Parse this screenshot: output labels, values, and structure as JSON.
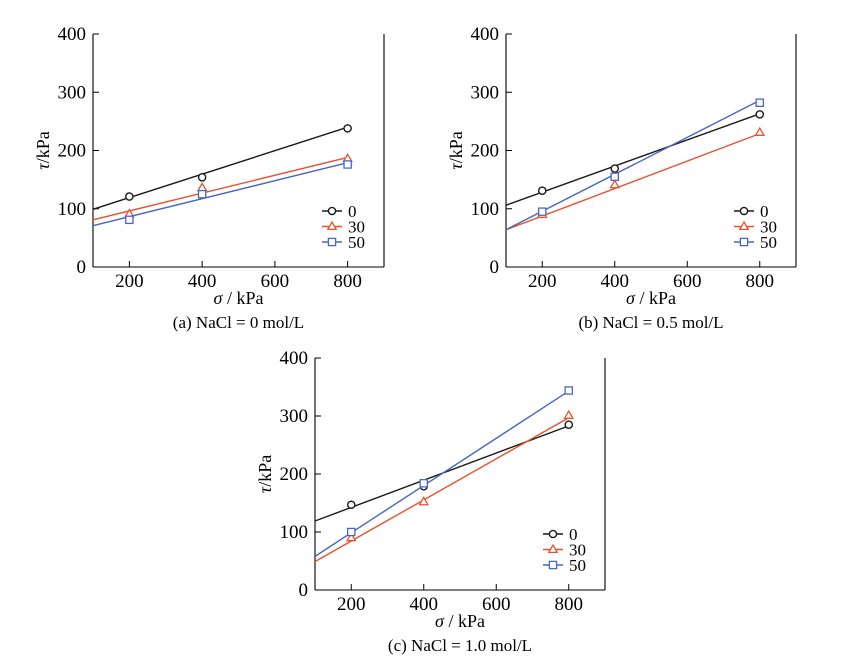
{
  "chart_data": [
    {
      "type": "line",
      "caption": "(a) NaCl = 0 mol/L",
      "xlabel_symbol": "σ",
      "xlabel_unit": " / kPa",
      "ylabel_symbol": "τ",
      "ylabel_unit": "/kPa",
      "xlim": [
        100,
        900
      ],
      "ylim": [
        0,
        400
      ],
      "xticks": [
        200,
        400,
        600,
        800
      ],
      "yticks": [
        0,
        100,
        200,
        300,
        400
      ],
      "legend_position": "lower-right",
      "series": [
        {
          "name": "0",
          "color": "#1a1a1a",
          "marker": "circle",
          "points": [
            [
              200,
              121
            ],
            [
              400,
              154
            ],
            [
              800,
              238
            ]
          ],
          "fit": [
            [
              100,
              99
            ],
            [
              800,
              240
            ]
          ]
        },
        {
          "name": "30",
          "color": "#e8522e",
          "marker": "triangle",
          "points": [
            [
              200,
              91
            ],
            [
              400,
              136
            ],
            [
              800,
              186
            ]
          ],
          "fit": [
            [
              100,
              81
            ],
            [
              800,
              188
            ]
          ]
        },
        {
          "name": "50",
          "color": "#4a66c4",
          "marker": "square",
          "points": [
            [
              200,
              81
            ],
            [
              400,
              125
            ],
            [
              800,
              176
            ]
          ],
          "fit": [
            [
              100,
              71
            ],
            [
              800,
              179
            ]
          ]
        }
      ]
    },
    {
      "type": "line",
      "caption": "(b) NaCl = 0.5 mol/L",
      "xlabel_symbol": "σ",
      "xlabel_unit": " / kPa",
      "ylabel_symbol": "τ",
      "ylabel_unit": "/kPa",
      "xlim": [
        100,
        900
      ],
      "ylim": [
        0,
        400
      ],
      "xticks": [
        200,
        400,
        600,
        800
      ],
      "yticks": [
        0,
        100,
        200,
        300,
        400
      ],
      "legend_position": "lower-right",
      "series": [
        {
          "name": "0",
          "color": "#1a1a1a",
          "marker": "circle",
          "points": [
            [
              200,
              131
            ],
            [
              400,
              169
            ],
            [
              800,
              262
            ]
          ],
          "fit": [
            [
              100,
              106
            ],
            [
              800,
              263
            ]
          ]
        },
        {
          "name": "30",
          "color": "#e8522e",
          "marker": "triangle",
          "points": [
            [
              200,
              90
            ],
            [
              400,
              141
            ],
            [
              800,
              231
            ]
          ],
          "fit": [
            [
              100,
              64
            ],
            [
              800,
              229
            ]
          ]
        },
        {
          "name": "50",
          "color": "#4a66c4",
          "marker": "square",
          "points": [
            [
              200,
              95
            ],
            [
              400,
              155
            ],
            [
              800,
              282
            ]
          ],
          "fit": [
            [
              100,
              64
            ],
            [
              800,
              286
            ]
          ]
        }
      ]
    },
    {
      "type": "line",
      "caption": "(c) NaCl = 1.0 mol/L",
      "xlabel_symbol": "σ",
      "xlabel_unit": " / kPa",
      "ylabel_symbol": "τ",
      "ylabel_unit": "/kPa",
      "xlim": [
        100,
        900
      ],
      "ylim": [
        0,
        400
      ],
      "xticks": [
        200,
        400,
        600,
        800
      ],
      "yticks": [
        0,
        100,
        200,
        300,
        400
      ],
      "legend_position": "lower-right",
      "series": [
        {
          "name": "0",
          "color": "#1a1a1a",
          "marker": "circle",
          "points": [
            [
              200,
              147
            ],
            [
              400,
              179
            ],
            [
              800,
              285
            ]
          ],
          "fit": [
            [
              100,
              119
            ],
            [
              800,
              283
            ]
          ]
        },
        {
          "name": "30",
          "color": "#e8522e",
          "marker": "triangle",
          "points": [
            [
              200,
              90
            ],
            [
              400,
              152
            ],
            [
              800,
              301
            ]
          ],
          "fit": [
            [
              100,
              49
            ],
            [
              800,
              297
            ]
          ]
        },
        {
          "name": "50",
          "color": "#4a66c4",
          "marker": "square",
          "points": [
            [
              200,
              100
            ],
            [
              400,
              184
            ],
            [
              800,
              344
            ]
          ],
          "fit": [
            [
              100,
              58
            ],
            [
              800,
              343
            ]
          ]
        }
      ]
    }
  ]
}
